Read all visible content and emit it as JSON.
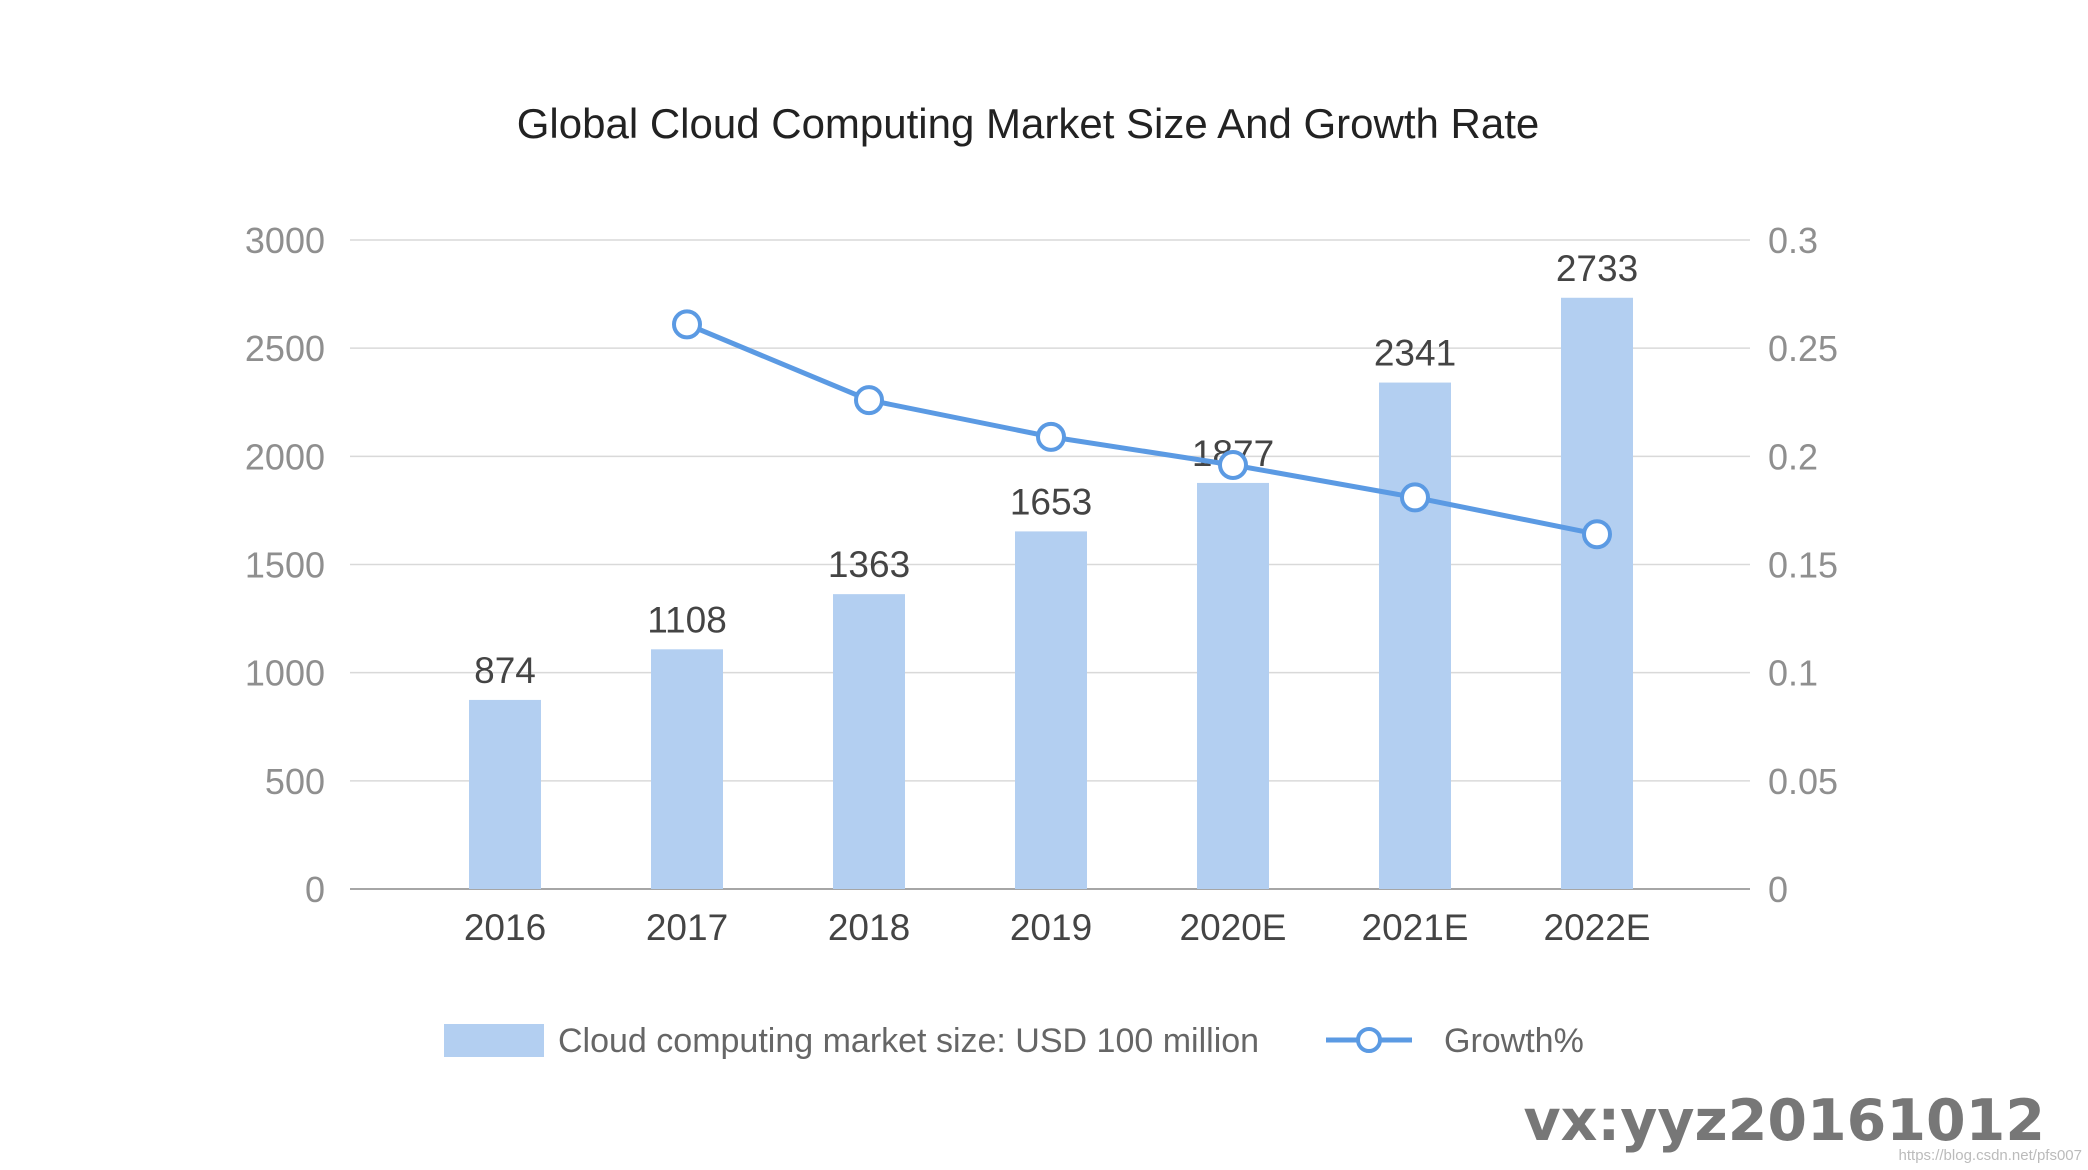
{
  "chart_data": {
    "type": "bar",
    "title": "Global Cloud Computing Market Size And Growth Rate",
    "categories": [
      "2016",
      "2017",
      "2018",
      "2019",
      "2020E",
      "2021E",
      "2022E"
    ],
    "series": [
      {
        "name": "Cloud computing market size: USD 100 million",
        "type": "bar",
        "axis": "left",
        "values": [
          874,
          1108,
          1363,
          1653,
          1877,
          2341,
          2733
        ],
        "labels": [
          "874",
          "1108",
          "1363",
          "1653",
          "1877",
          "2341",
          "2733"
        ]
      },
      {
        "name": "Growth%",
        "type": "line",
        "axis": "right",
        "values": [
          null,
          0.261,
          0.226,
          0.209,
          0.196,
          0.181,
          0.164
        ]
      }
    ],
    "y_left": {
      "range": [
        0,
        3000
      ],
      "ticks": [
        "0",
        "500",
        "1000",
        "1500",
        "2000",
        "2500",
        "3000"
      ]
    },
    "y_right": {
      "range": [
        0,
        0.3
      ],
      "ticks": [
        "0",
        "0.05",
        "0.1",
        "0.15",
        "0.2",
        "0.25",
        "0.3"
      ]
    },
    "grid": true,
    "legend_position": "bottom",
    "colors": {
      "bar": "#b3cff1",
      "line": "#5b9ae3",
      "grid": "#d9d9d9",
      "axis": "#a6a6a6"
    }
  },
  "watermark": {
    "text": "vx:yyz20161012",
    "url": "https://blog.csdn.net/pfs007"
  }
}
